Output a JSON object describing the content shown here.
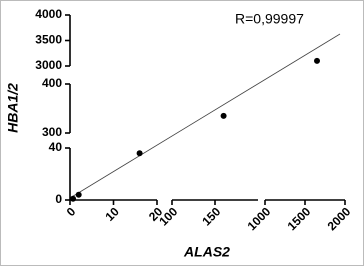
{
  "chart_data": {
    "type": "scatter",
    "x_label": "ALAS2",
    "y_label": "HBA1/2",
    "annotation": "R=0,99997",
    "x": [
      0.7,
      2,
      16,
      160,
      1650
    ],
    "values": [
      1,
      4,
      36,
      335,
      3100
    ],
    "color": "#000000",
    "x_segments": [
      {
        "xlim": [
          0,
          20
        ],
        "xticks": [
          0,
          10,
          20
        ]
      },
      {
        "xlim": [
          100,
          200
        ],
        "xticks": [
          100,
          150
        ]
      },
      {
        "xlim": [
          1000,
          2000
        ],
        "xticks": [
          1000,
          1500,
          2000
        ]
      }
    ],
    "y_segments": [
      {
        "ylim": [
          0,
          40
        ],
        "yticks": [
          0,
          40
        ]
      },
      {
        "ylim": [
          300,
          400
        ],
        "yticks": [
          300,
          400
        ]
      },
      {
        "ylim": [
          3000,
          4000
        ],
        "yticks": [
          3000,
          3500,
          4000
        ]
      }
    ]
  }
}
